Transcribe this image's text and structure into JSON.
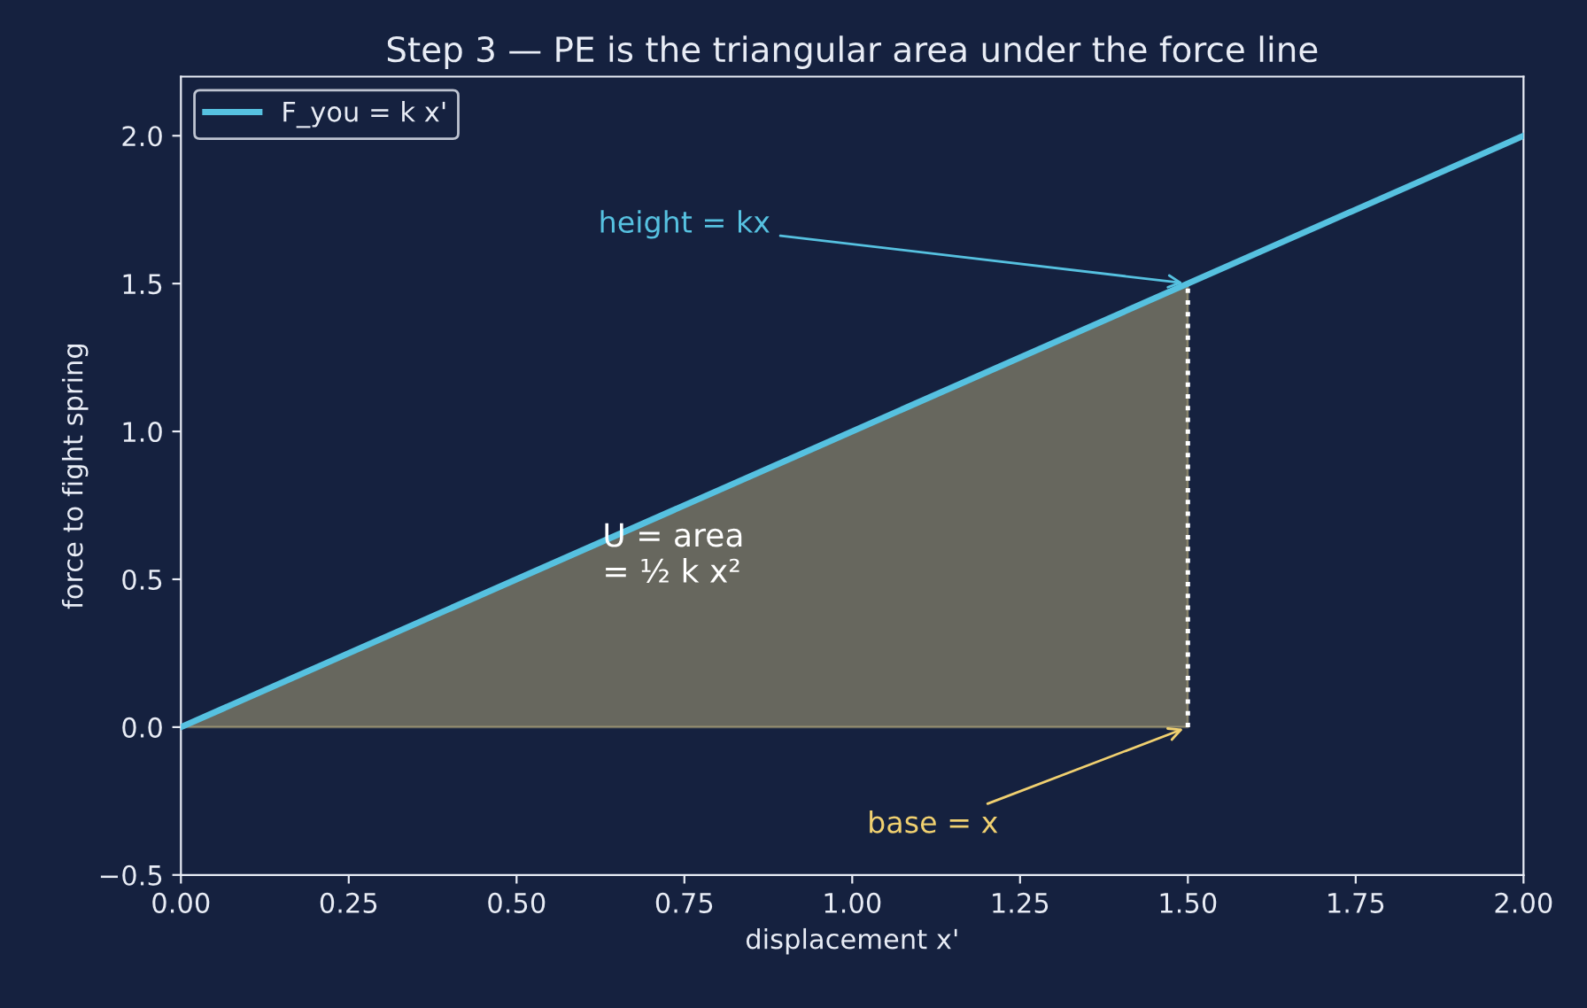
{
  "chart_data": {
    "type": "line",
    "title": "Step 3 — PE is the triangular area under the force line",
    "xlabel": "displacement x'",
    "ylabel": "force to fight spring",
    "series": [
      {
        "type": "area",
        "x": [
          0,
          1.5
        ],
        "values": [
          0,
          1.5
        ],
        "color": "#d9c98a"
      },
      {
        "type": "line",
        "x": [
          1.5,
          1.5
        ],
        "values": [
          0,
          1.5
        ],
        "color": "#ffffff",
        "line_style": "dotted"
      },
      {
        "name": "F_you = k x'",
        "x": [
          0,
          2
        ],
        "values": [
          0,
          2
        ],
        "color": "#56c1e0"
      }
    ],
    "annotations": [
      {
        "text": "height = kx",
        "x": 1.5,
        "y": 1.5
      },
      {
        "text": "base = x",
        "x": 1.5,
        "y": 0
      },
      "U = area\n= ½ k x²"
    ],
    "xlim": [
      0,
      2
    ],
    "ylim": [
      -0.5,
      2.2
    ],
    "xticks": [
      {
        "value": 0,
        "label": "0.00"
      },
      {
        "value": 0.25,
        "label": "0.25"
      },
      {
        "value": 0.5,
        "label": "0.50"
      },
      {
        "value": 0.75,
        "label": "0.75"
      },
      {
        "value": 1,
        "label": "1.00"
      },
      {
        "value": 1.25,
        "label": "1.25"
      },
      {
        "value": 1.5,
        "label": "1.50"
      },
      {
        "value": 1.75,
        "label": "1.75"
      },
      {
        "value": 2,
        "label": "2.00"
      }
    ],
    "yticks": [
      {
        "value": -0.5,
        "label": "−0.5"
      },
      {
        "value": 0,
        "label": "0.0"
      },
      {
        "value": 0.5,
        "label": "0.5"
      },
      {
        "value": 1,
        "label": "1.0"
      },
      {
        "value": 1.5,
        "label": "1.5"
      },
      {
        "value": 2,
        "label": "2.0"
      }
    ],
    "grid": false,
    "legend": "top left"
  }
}
